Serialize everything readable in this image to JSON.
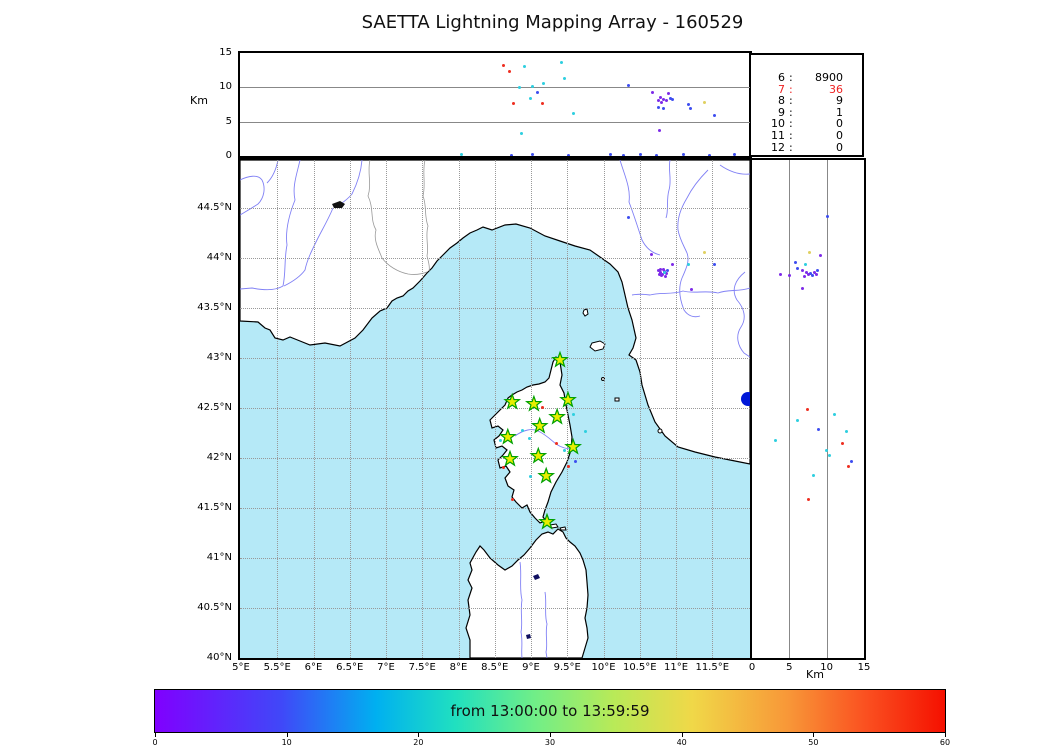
{
  "title": "SAETTA Lightning Mapping Array - 160529",
  "colors": {
    "sea": "#b5e9f7",
    "land": "#ffffff",
    "coast": "#000000",
    "river": "#8181f5",
    "border_line": "#999999",
    "lake_dark": "#101060",
    "lake_bolsena": "#0018d8",
    "station_fill": "#e8ee00",
    "station_stroke": "#00a000",
    "palette": {
      "v": "#7d2ae8",
      "b": "#3d4df0",
      "c": "#2ecfe0",
      "y": "#e0d060",
      "o": "#f08030",
      "r": "#ee2e20"
    }
  },
  "stats": {
    "rows": [
      [
        "6",
        "8900"
      ],
      [
        "7",
        "36"
      ],
      [
        "8",
        "9"
      ],
      [
        "9",
        "1"
      ],
      [
        "10",
        "0"
      ],
      [
        "11",
        "0"
      ],
      [
        "12",
        "0"
      ]
    ],
    "highlight_row": 1,
    "highlight_color": "#ee2222"
  },
  "chart_data": [
    {
      "id": "alt_lon",
      "type": "scatter",
      "title": "altitude vs longitude",
      "xlim": [
        4.986,
        12.02
      ],
      "ylim": [
        0,
        15
      ],
      "ylabel": "Km",
      "yticks": [
        0,
        5,
        10,
        15
      ],
      "ygridlines": [
        5,
        10
      ],
      "points": [
        [
          8.61,
          13.2,
          "r"
        ],
        [
          8.7,
          12.4,
          "r"
        ],
        [
          8.9,
          13.1,
          "c"
        ],
        [
          9.41,
          13.7,
          "c"
        ],
        [
          9.45,
          11.4,
          "c"
        ],
        [
          9.16,
          10.6,
          "c"
        ],
        [
          8.83,
          10.0,
          "c"
        ],
        [
          9.01,
          10.2,
          "c"
        ],
        [
          8.98,
          8.4,
          "c"
        ],
        [
          9.58,
          6.3,
          "c"
        ],
        [
          8.86,
          3.3,
          "c"
        ],
        [
          8.75,
          7.7,
          "r"
        ],
        [
          9.15,
          7.7,
          "r"
        ],
        [
          10.34,
          10.3,
          "b"
        ],
        [
          9.08,
          9.3,
          "b"
        ],
        [
          10.67,
          9.3,
          "v"
        ],
        [
          10.89,
          9.2,
          "v"
        ],
        [
          10.78,
          8.6,
          "v"
        ],
        [
          10.82,
          8.3,
          "v"
        ],
        [
          10.86,
          8.2,
          "v"
        ],
        [
          10.75,
          8.2,
          "v"
        ],
        [
          10.79,
          7.9,
          "v"
        ],
        [
          10.92,
          8.4,
          "b"
        ],
        [
          10.76,
          3.8,
          "v"
        ],
        [
          10.94,
          8.3,
          "b"
        ],
        [
          10.75,
          7.1,
          "b"
        ],
        [
          10.82,
          7.0,
          "b"
        ],
        [
          11.16,
          7.6,
          "b"
        ],
        [
          11.19,
          7.0,
          "b"
        ],
        [
          11.52,
          6.0,
          "b"
        ],
        [
          11.38,
          7.9,
          "y"
        ],
        [
          8.03,
          0.3,
          "c"
        ],
        [
          8.72,
          0.15,
          "b"
        ],
        [
          9.02,
          0.3,
          "b"
        ],
        [
          9.51,
          0.15,
          "b"
        ],
        [
          10.09,
          0.3,
          "b"
        ],
        [
          10.27,
          0.15,
          "b"
        ],
        [
          10.5,
          0.3,
          "b"
        ],
        [
          10.72,
          0.15,
          "b"
        ],
        [
          11.09,
          0.3,
          "b"
        ],
        [
          11.46,
          0.15,
          "b"
        ],
        [
          11.8,
          0.3,
          "b"
        ]
      ]
    },
    {
      "id": "map",
      "type": "scatter_map",
      "title": "plan view map",
      "xlim": [
        4.986,
        12.02
      ],
      "ylim": [
        40.0,
        44.98
      ],
      "lon_ticks": [
        [
          5,
          "5°E"
        ],
        [
          5.5,
          "5.5°E"
        ],
        [
          6,
          "6°E"
        ],
        [
          6.5,
          "6.5°E"
        ],
        [
          7,
          "7°E"
        ],
        [
          7.5,
          "7.5°E"
        ],
        [
          8,
          "8°E"
        ],
        [
          8.5,
          "8.5°E"
        ],
        [
          9,
          "9°E"
        ],
        [
          9.5,
          "9.5°E"
        ],
        [
          10,
          "10°E"
        ],
        [
          10.5,
          "10.5°E"
        ],
        [
          11,
          "11°E"
        ],
        [
          11.5,
          "11.5°E"
        ]
      ],
      "lat_ticks": [
        [
          44.5,
          "44.5°N"
        ],
        [
          44,
          "44°N"
        ],
        [
          43.5,
          "43.5°N"
        ],
        [
          43,
          "43°N"
        ],
        [
          42.5,
          "42.5°N"
        ],
        [
          42,
          "42°N"
        ],
        [
          41.5,
          "41.5°N"
        ],
        [
          41,
          "41°N"
        ],
        [
          40.5,
          "40.5°N"
        ],
        [
          40,
          "40°N"
        ]
      ],
      "stations": [
        [
          9.4,
          42.98
        ],
        [
          8.74,
          42.56
        ],
        [
          9.04,
          42.54
        ],
        [
          9.51,
          42.58
        ],
        [
          9.36,
          42.41
        ],
        [
          9.12,
          42.32
        ],
        [
          8.68,
          42.21
        ],
        [
          9.58,
          42.11
        ],
        [
          8.71,
          41.99
        ],
        [
          9.1,
          42.02
        ],
        [
          9.21,
          41.82
        ],
        [
          9.22,
          41.36
        ]
      ],
      "points": [
        [
          10.75,
          43.88,
          "v"
        ],
        [
          10.78,
          43.86,
          "v"
        ],
        [
          10.81,
          43.84,
          "v"
        ],
        [
          10.83,
          43.87,
          "v"
        ],
        [
          10.86,
          43.85,
          "v"
        ],
        [
          10.82,
          43.89,
          "v"
        ],
        [
          10.76,
          43.84,
          "v"
        ],
        [
          10.85,
          43.82,
          "v"
        ],
        [
          10.79,
          43.83,
          "v"
        ],
        [
          10.87,
          43.88,
          "b"
        ],
        [
          10.84,
          43.86,
          "c"
        ],
        [
          10.78,
          43.89,
          "v"
        ],
        [
          10.66,
          44.04,
          "v"
        ],
        [
          11.38,
          44.06,
          "y"
        ],
        [
          10.94,
          43.94,
          "v"
        ],
        [
          11.17,
          43.94,
          "c"
        ],
        [
          11.52,
          43.94,
          "b"
        ],
        [
          11.2,
          43.69,
          "v"
        ],
        [
          10.34,
          44.41,
          "b"
        ],
        [
          9.15,
          42.51,
          "r"
        ],
        [
          9.58,
          42.44,
          "c"
        ],
        [
          8.87,
          42.28,
          "c"
        ],
        [
          9.74,
          42.27,
          "c"
        ],
        [
          8.97,
          42.2,
          "c"
        ],
        [
          9.34,
          42.15,
          "r"
        ],
        [
          9.46,
          42.08,
          "c"
        ],
        [
          9.12,
          42.03,
          "c"
        ],
        [
          9.6,
          41.97,
          "b"
        ],
        [
          9.51,
          41.92,
          "r"
        ],
        [
          8.98,
          41.82,
          "c"
        ],
        [
          8.62,
          41.91,
          "r"
        ],
        [
          8.74,
          41.59,
          "r"
        ],
        [
          8.57,
          42.18,
          "c"
        ]
      ]
    },
    {
      "id": "alt_lat",
      "type": "scatter",
      "title": "altitude vs latitude",
      "xlim": [
        0,
        15
      ],
      "ylim": [
        40.0,
        44.98
      ],
      "xlabel": "Km",
      "xticks": [
        0,
        5,
        10,
        15
      ],
      "xgridlines": [
        5,
        10
      ],
      "points": [
        [
          10.0,
          44.42,
          "b"
        ],
        [
          7.6,
          44.06,
          "y"
        ],
        [
          9.1,
          44.03,
          "v"
        ],
        [
          5.8,
          43.96,
          "b"
        ],
        [
          7.1,
          43.94,
          "c"
        ],
        [
          6.0,
          43.9,
          "b"
        ],
        [
          6.7,
          43.88,
          "v"
        ],
        [
          7.2,
          43.86,
          "v"
        ],
        [
          7.8,
          43.85,
          "b"
        ],
        [
          8.3,
          43.86,
          "v"
        ],
        [
          7.5,
          43.84,
          "v"
        ],
        [
          8.0,
          43.83,
          "b"
        ],
        [
          8.6,
          43.84,
          "v"
        ],
        [
          7.0,
          43.82,
          "v"
        ],
        [
          8.7,
          43.88,
          "b"
        ],
        [
          3.7,
          43.84,
          "v"
        ],
        [
          5.0,
          43.83,
          "v"
        ],
        [
          6.7,
          43.7,
          "v"
        ],
        [
          7.4,
          42.49,
          "r"
        ],
        [
          11.0,
          42.44,
          "c"
        ],
        [
          6.0,
          42.38,
          "c"
        ],
        [
          8.8,
          42.29,
          "b"
        ],
        [
          12.6,
          42.27,
          "c"
        ],
        [
          3.1,
          42.18,
          "c"
        ],
        [
          12.0,
          42.15,
          "r"
        ],
        [
          9.9,
          42.08,
          "c"
        ],
        [
          10.3,
          42.03,
          "c"
        ],
        [
          13.3,
          41.97,
          "b"
        ],
        [
          12.9,
          41.92,
          "r"
        ],
        [
          8.2,
          41.83,
          "c"
        ],
        [
          7.5,
          41.59,
          "r"
        ]
      ]
    },
    {
      "id": "colorbar",
      "type": "colorbar",
      "label": "from 13:00:00 to 13:59:59",
      "xlim": [
        0,
        60
      ],
      "ticks": [
        0,
        10,
        20,
        30,
        40,
        50,
        60
      ],
      "gradient_css": "linear-gradient(90deg,#8000ff 0%,#4048f8 16%,#00b0f0 28%,#20e0c0 38%,#70ee88 48%,#b8ea58 58%,#f0d848 68%,#f89838 80%,#fa5020 90%,#f51000 100%)"
    }
  ]
}
